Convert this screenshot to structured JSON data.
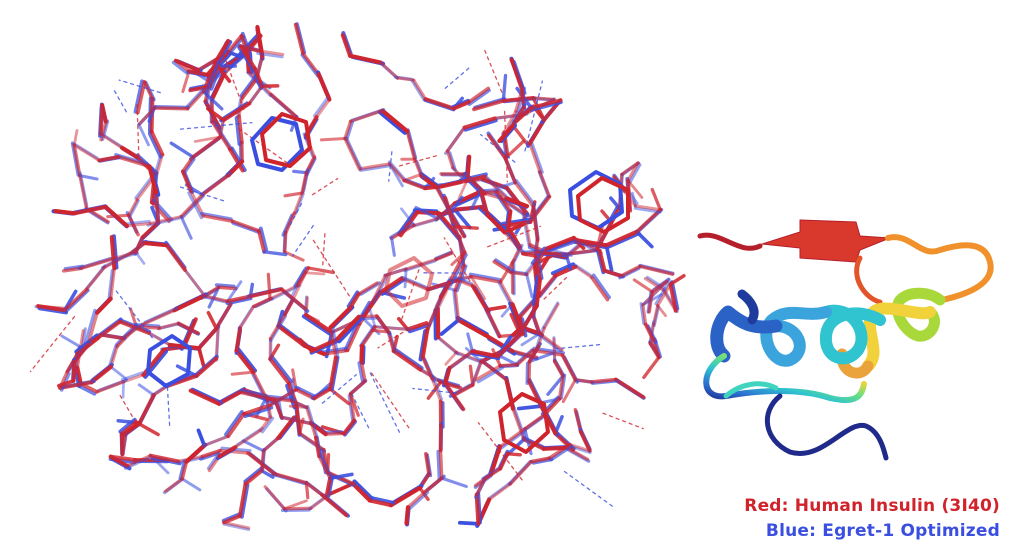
{
  "legend": {
    "red_label": "Red: Human Insulin (3I40)",
    "blue_label": "Blue: Egret-1 Optimized"
  },
  "colors": {
    "background": "#ffffff",
    "structure_red": "#d0242c",
    "structure_blue": "#3a4fe0",
    "ribbon_gradient": [
      "#1f2a8a",
      "#2b6fd1",
      "#2fc4d0",
      "#6fe07a",
      "#f2d23a",
      "#f08a2a",
      "#c9242a"
    ]
  },
  "icons": {
    "overlay": "stick-model-overlay",
    "cartoon": "rainbow-ribbon-cartoon"
  }
}
